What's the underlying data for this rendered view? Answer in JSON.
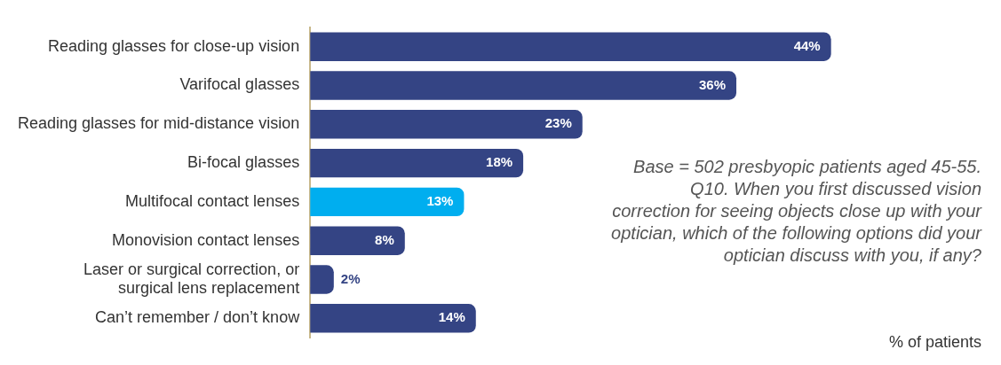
{
  "chart_data": {
    "type": "bar",
    "orientation": "horizontal",
    "categories": [
      "Reading glasses for close-up vision",
      "Varifocal glasses",
      "Reading glasses for mid-distance vision",
      "Bi-focal glasses",
      "Multifocal contact lenses",
      "Monovision contact lenses",
      "Laser or surgical correction, or\nsurgical lens replacement",
      "Can’t remember / don’t know"
    ],
    "values": [
      44,
      36,
      23,
      18,
      13,
      8,
      2,
      14
    ],
    "colors": [
      "#344484",
      "#344484",
      "#344484",
      "#344484",
      "#00aeef",
      "#344484",
      "#344484",
      "#344484"
    ],
    "value_labels": [
      "44%",
      "36%",
      "23%",
      "18%",
      "13%",
      "8%",
      "2%",
      "14%"
    ],
    "xlabel": "% of patients",
    "annotations": [
      "Base = 502 presbyopic patients aged 45-55. Q10. When you first discussed vision correction for seeing objects close up with your optician, which of the following options did your optician discuss with you, if any?"
    ],
    "grid": false,
    "legend": false
  }
}
